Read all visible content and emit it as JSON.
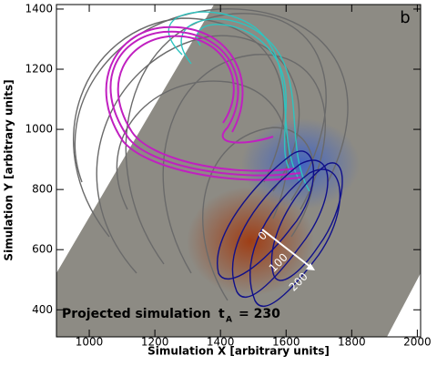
{
  "chart_data": {
    "type": "field-lines",
    "panel_label": "b",
    "xlabel": "Simulation X [arbitrary units]",
    "ylabel": "Simulation Y [arbitrary units]",
    "xlim": [
      900,
      2010
    ],
    "xticks": [
      1000,
      1200,
      1400,
      1600,
      1800,
      2000
    ],
    "ylim": [
      310,
      1415
    ],
    "yticks": [
      400,
      600,
      800,
      1000,
      1200,
      1400
    ],
    "annotation": {
      "text": "Projected simulation",
      "symbol": "t",
      "subscript": "A",
      "value": "= 230"
    },
    "scale_labels": [
      "0",
      "100",
      "200"
    ]
  }
}
